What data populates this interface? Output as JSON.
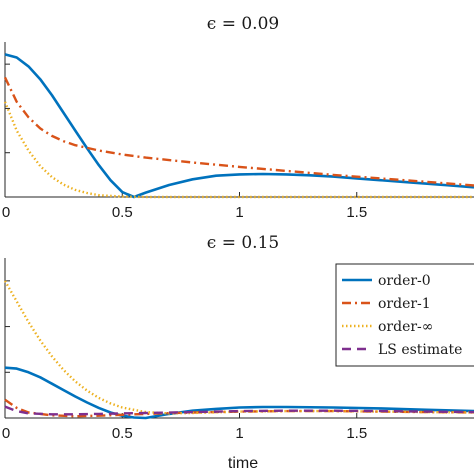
{
  "chart_data": [
    {
      "type": "line",
      "title": "ϵ = 0.09",
      "xlabel": "",
      "ylabel": "",
      "xlim": [
        0,
        2
      ],
      "ylim": [
        0,
        0.035
      ],
      "xticks": [
        0,
        0.5,
        1,
        1.5
      ],
      "xtick_labels": [
        "0",
        "0.5",
        "1",
        "1.5"
      ],
      "grid": false,
      "series": [
        {
          "name": "order-0",
          "color": "#0072BD",
          "style": "solid",
          "x": [
            0,
            0.05,
            0.1,
            0.15,
            0.2,
            0.25,
            0.3,
            0.35,
            0.4,
            0.45,
            0.5,
            0.55,
            0.6,
            0.7,
            0.8,
            0.9,
            1.0,
            1.1,
            1.2,
            1.3,
            1.4,
            1.5,
            1.6,
            1.7,
            1.8,
            1.9,
            2.0
          ],
          "y": [
            0.0322,
            0.0315,
            0.0295,
            0.0266,
            0.023,
            0.019,
            0.015,
            0.011,
            0.0072,
            0.0038,
            0.0011,
            0.0,
            0.001,
            0.0027,
            0.004,
            0.0048,
            0.0051,
            0.0052,
            0.0051,
            0.0049,
            0.0046,
            0.0042,
            0.0038,
            0.0034,
            0.003,
            0.0026,
            0.0022
          ]
        },
        {
          "name": "order-1",
          "color": "#D95319",
          "style": "dashdot",
          "x": [
            0,
            0.05,
            0.1,
            0.15,
            0.2,
            0.25,
            0.3,
            0.4,
            0.5,
            0.6,
            0.8,
            1.0,
            1.2,
            1.4,
            1.6,
            1.8,
            2.0
          ],
          "y": [
            0.027,
            0.0215,
            0.018,
            0.0155,
            0.0138,
            0.0126,
            0.0117,
            0.0105,
            0.0096,
            0.0089,
            0.0078,
            0.0068,
            0.0059,
            0.005,
            0.0042,
            0.0034,
            0.0026
          ]
        },
        {
          "name": "order-∞",
          "color": "#EDB120",
          "style": "dotted",
          "x": [
            0,
            0.05,
            0.1,
            0.15,
            0.2,
            0.25,
            0.3,
            0.35,
            0.4,
            0.5,
            0.6,
            0.8,
            1.0,
            1.5,
            2.0
          ],
          "y": [
            0.0215,
            0.015,
            0.0105,
            0.007,
            0.0045,
            0.0028,
            0.0016,
            0.0009,
            0.0004,
            0.0001,
            0.0,
            0.0,
            0.0,
            0.0,
            0.0
          ]
        }
      ]
    },
    {
      "type": "line",
      "title": "ϵ = 0.15",
      "xlabel": "time",
      "ylabel": "",
      "xlim": [
        0,
        2
      ],
      "ylim": [
        0,
        0.035
      ],
      "xticks": [
        0,
        0.5,
        1,
        1.5
      ],
      "xtick_labels": [
        "0",
        "0.5",
        "1",
        "1.5"
      ],
      "grid": false,
      "legend": {
        "position": "right",
        "entries": [
          "order-0",
          "order-1",
          "order-∞",
          "LS estimate"
        ]
      },
      "series": [
        {
          "name": "order-0",
          "color": "#0072BD",
          "style": "solid",
          "x": [
            0,
            0.05,
            0.1,
            0.15,
            0.2,
            0.25,
            0.3,
            0.35,
            0.4,
            0.45,
            0.5,
            0.55,
            0.6,
            0.7,
            0.8,
            0.9,
            1.0,
            1.1,
            1.2,
            1.4,
            1.6,
            1.8,
            2.0
          ],
          "y": [
            0.011,
            0.0108,
            0.01,
            0.0089,
            0.0075,
            0.0061,
            0.0047,
            0.0034,
            0.0022,
            0.0012,
            0.0005,
            0.0001,
            0.0,
            0.0009,
            0.0016,
            0.002,
            0.0023,
            0.0024,
            0.0024,
            0.0023,
            0.0021,
            0.0018,
            0.0015
          ]
        },
        {
          "name": "order-1",
          "color": "#D95319",
          "style": "dashdot",
          "x": [
            0,
            0.05,
            0.1,
            0.2,
            0.3,
            0.4,
            0.5,
            0.6,
            0.8,
            1.0,
            1.2,
            1.4,
            1.6,
            1.8,
            2.0
          ],
          "y": [
            0.004,
            0.0022,
            0.0012,
            0.0006,
            0.0004,
            0.0005,
            0.0007,
            0.0009,
            0.0012,
            0.0014,
            0.0015,
            0.0015,
            0.0014,
            0.0013,
            0.0012
          ]
        },
        {
          "name": "order-∞",
          "color": "#EDB120",
          "style": "dotted",
          "x": [
            0,
            0.05,
            0.1,
            0.15,
            0.2,
            0.25,
            0.3,
            0.35,
            0.4,
            0.45,
            0.5,
            0.6,
            0.7,
            0.8,
            1.0,
            1.2,
            1.4,
            1.6,
            1.8,
            2.0
          ],
          "y": [
            0.03,
            0.0255,
            0.021,
            0.017,
            0.0135,
            0.0105,
            0.008,
            0.006,
            0.0044,
            0.0032,
            0.0023,
            0.0013,
            0.001,
            0.0011,
            0.0014,
            0.0015,
            0.0015,
            0.0014,
            0.0013,
            0.0012
          ]
        },
        {
          "name": "LS estimate",
          "color": "#7E2F8E",
          "style": "dashed",
          "x": [
            0,
            0.05,
            0.1,
            0.2,
            0.3,
            0.4,
            0.5,
            0.6,
            0.8,
            1.0,
            1.2,
            1.4,
            1.6,
            1.8,
            2.0
          ],
          "y": [
            0.0025,
            0.0015,
            0.001,
            0.0008,
            0.0008,
            0.0009,
            0.001,
            0.0011,
            0.0013,
            0.0015,
            0.0016,
            0.0016,
            0.0015,
            0.0014,
            0.0013
          ]
        }
      ]
    }
  ]
}
